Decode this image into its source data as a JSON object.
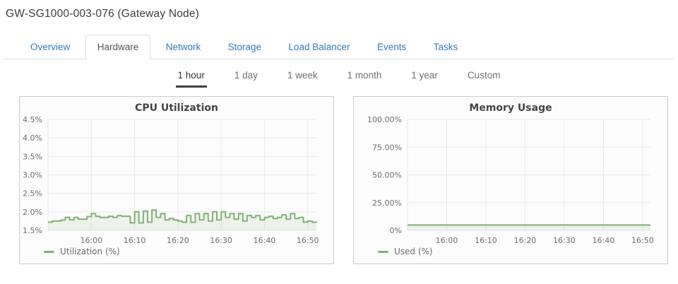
{
  "header": {
    "title": "GW-SG1000-003-076 (Gateway Node)"
  },
  "tabs": {
    "items": [
      {
        "label": "Overview",
        "active": false
      },
      {
        "label": "Hardware",
        "active": true
      },
      {
        "label": "Network",
        "active": false
      },
      {
        "label": "Storage",
        "active": false
      },
      {
        "label": "Load Balancer",
        "active": false
      },
      {
        "label": "Events",
        "active": false
      },
      {
        "label": "Tasks",
        "active": false
      }
    ]
  },
  "time_ranges": {
    "items": [
      {
        "label": "1 hour",
        "active": true
      },
      {
        "label": "1 day",
        "active": false
      },
      {
        "label": "1 week",
        "active": false
      },
      {
        "label": "1 month",
        "active": false
      },
      {
        "label": "1 year",
        "active": false
      },
      {
        "label": "Custom",
        "active": false
      }
    ]
  },
  "colors": {
    "accent_blue": "#337ab7",
    "series_green": "#80b174",
    "series_fill_opacity": 0.13,
    "grid": "#e9e9e9",
    "panel_border": "#cbcbcb",
    "panel_bg": "#fcfcfc"
  },
  "chart_data": [
    {
      "type": "line",
      "title": "CPU Utilization",
      "legend": "Utilization (%)",
      "legend_position": "bottom-left",
      "grid": true,
      "ylim": [
        1.5,
        4.5
      ],
      "yticks": [
        {
          "v": 4.5,
          "label": "4.5%"
        },
        {
          "v": 4.0,
          "label": "4.0%"
        },
        {
          "v": 3.5,
          "label": "3.5%"
        },
        {
          "v": 3.0,
          "label": "3.0%"
        },
        {
          "v": 2.5,
          "label": "2.5%"
        },
        {
          "v": 2.0,
          "label": "2.0%"
        },
        {
          "v": 1.5,
          "label": "1.5%"
        }
      ],
      "x_range": [
        "15:50",
        "16:52"
      ],
      "xticks": [
        {
          "f": 0.1613,
          "label": "16:00"
        },
        {
          "f": 0.3226,
          "label": "16:10"
        },
        {
          "f": 0.4839,
          "label": "16:20"
        },
        {
          "f": 0.6452,
          "label": "16:30"
        },
        {
          "f": 0.8065,
          "label": "16:40"
        },
        {
          "f": 0.9677,
          "label": "16:50"
        }
      ],
      "values": [
        1.72,
        1.75,
        1.75,
        1.78,
        1.85,
        1.78,
        1.85,
        1.8,
        1.8,
        1.87,
        1.95,
        1.88,
        1.85,
        1.85,
        1.88,
        1.85,
        1.9,
        1.88,
        1.88,
        1.7,
        2.0,
        1.7,
        2.02,
        1.72,
        2.05,
        1.85,
        1.95,
        1.78,
        1.82,
        1.78,
        1.75,
        1.72,
        1.9,
        1.72,
        1.95,
        1.78,
        1.95,
        1.75,
        2.0,
        1.78,
        2.0,
        1.85,
        1.95,
        1.8,
        1.95,
        1.75,
        1.9,
        1.85,
        1.9,
        1.78,
        1.85,
        1.88,
        1.82,
        1.85,
        1.92,
        1.8,
        1.95,
        1.82,
        1.85,
        1.72,
        1.75,
        1.72,
        1.7
      ]
    },
    {
      "type": "line",
      "title": "Memory Usage",
      "legend": "Used (%)",
      "legend_position": "bottom-left",
      "grid": true,
      "ylim": [
        0,
        100
      ],
      "yticks": [
        {
          "v": 100,
          "label": "100.00%"
        },
        {
          "v": 75,
          "label": "75.00%"
        },
        {
          "v": 50,
          "label": "50.00%"
        },
        {
          "v": 25,
          "label": "25.00%"
        },
        {
          "v": 0,
          "label": "0%"
        }
      ],
      "x_range": [
        "15:50",
        "16:52"
      ],
      "xticks": [
        {
          "f": 0.1613,
          "label": "16:00"
        },
        {
          "f": 0.3226,
          "label": "16:10"
        },
        {
          "f": 0.4839,
          "label": "16:20"
        },
        {
          "f": 0.6452,
          "label": "16:30"
        },
        {
          "f": 0.8065,
          "label": "16:40"
        },
        {
          "f": 0.9677,
          "label": "16:50"
        }
      ],
      "values": [
        4.8,
        4.8,
        4.8,
        4.8,
        4.8,
        4.8,
        4.8,
        4.8,
        4.8,
        4.8,
        4.8,
        4.8,
        4.8
      ]
    }
  ]
}
